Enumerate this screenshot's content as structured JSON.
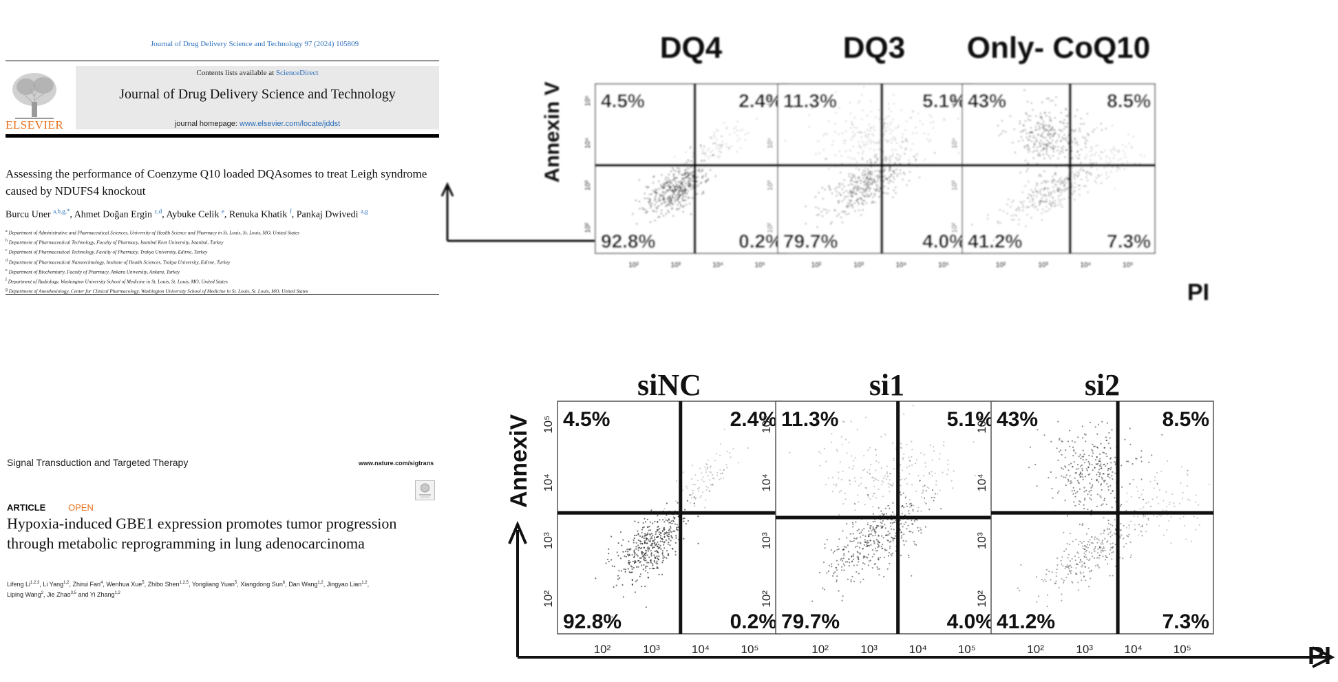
{
  "paper1": {
    "journal_ref": "Journal of Drug Delivery Science and Technology 97 (2024) 105809",
    "contents_prefix": "Contents lists available at ",
    "contents_link": "ScienceDirect",
    "publisher": "ELSEVIER",
    "banner_title": "Journal of Drug Delivery Science and Technology",
    "homepage_prefix": "journal homepage: ",
    "homepage_link": "www.elsevier.com/locate/jddst",
    "title": "Assessing the performance of Coenzyme Q10 loaded DQAsomes to treat Leigh syndrome caused by NDUFS4 knockout",
    "authors": [
      {
        "name": "Burcu Uner",
        "sup": "a,b,g,*"
      },
      {
        "name": "Ahmet Doğan Ergin",
        "sup": "c,d"
      },
      {
        "name": "Aybuke Celik",
        "sup": "e"
      },
      {
        "name": "Renuka Khatik",
        "sup": "f"
      },
      {
        "name": "Pankaj Dwivedi",
        "sup": "a,g"
      }
    ],
    "affiliations": [
      {
        "sup": "a",
        "text": "Department of Administrative and Pharmaceutical Sciences, University of Health Science and Pharmacy in St. Louis, St. Louis, MO, United States"
      },
      {
        "sup": "b",
        "text": "Department of Pharmaceutical Technology, Faculty of Pharmacy, Istanbul Kent University, Istanbul, Turkey"
      },
      {
        "sup": "c",
        "text": "Department of Pharmaceutical Technology, Faculty of Pharmacy, Trakya University, Edirne, Turkey"
      },
      {
        "sup": "d",
        "text": "Department of Pharmaceutical Nanotechnology, Institute of Health Sciences, Trakya University, Edirne, Turkey"
      },
      {
        "sup": "e",
        "text": "Department of Biochemistry, Faculty of Pharmacy, Ankara University, Ankara, Turkey"
      },
      {
        "sup": "f",
        "text": "Department of Radiology, Washington University School of Medicine in St. Louis, St. Louis, MO, United States"
      },
      {
        "sup": "g",
        "text": "Department of Anesthesiology, Center for Clinical Pharmacology, Washington University School of Medicine in St. Louis, St. Louis, MO, United States"
      }
    ]
  },
  "paper2": {
    "journal": "Signal Transduction and Targeted Therapy",
    "url": "www.nature.com/sigtrans",
    "article_type": "ARTICLE",
    "access": "OPEN",
    "title": "Hypoxia-induced GBE1 expression promotes tumor progression through metabolic reprogramming in lung adenocarcinoma",
    "authors": [
      {
        "name": "Lifeng Li",
        "sup": "1,2,3"
      },
      {
        "name": "Li Yang",
        "sup": "1,2"
      },
      {
        "name": "Zhirui Fan",
        "sup": "4"
      },
      {
        "name": "Wenhua Xue",
        "sup": "5"
      },
      {
        "name": "Zhibo Shen",
        "sup": "1,2,5"
      },
      {
        "name": "Yongliang Yuan",
        "sup": "5"
      },
      {
        "name": "Xiangdong Sun",
        "sup": "6"
      },
      {
        "name": "Dan Wang",
        "sup": "1,2"
      },
      {
        "name": "Jingyao Lian",
        "sup": "1,2"
      },
      {
        "name": "Liping Wang",
        "sup": "2"
      },
      {
        "name": "Jie Zhao",
        "sup": "3,5"
      },
      {
        "name": "Yi Zhang",
        "sup": "1,2"
      }
    ]
  },
  "chart_data": [
    {
      "type": "scatter",
      "xlabel": "PI",
      "ylabel": "Annexin V",
      "x_ticks": [
        "10²",
        "10³",
        "10⁴",
        "10⁵"
      ],
      "y_ticks": [
        "10²",
        "10³",
        "10⁴",
        "10⁵"
      ],
      "panels": [
        {
          "title": "DQ4",
          "quadrants": {
            "upper_left": "4.5%",
            "upper_right": "2.4%",
            "lower_left": "92.8%",
            "lower_right": "0.2%"
          }
        },
        {
          "title": "DQ3",
          "quadrants": {
            "upper_left": "11.3%",
            "upper_right": "5.1%",
            "lower_left": "79.7%",
            "lower_right": "4.0%"
          }
        },
        {
          "title": "Only- CoQ10",
          "quadrants": {
            "upper_left": "43%",
            "upper_right": "8.5%",
            "lower_left": "41.2%",
            "lower_right": "7.3%"
          }
        }
      ]
    },
    {
      "type": "scatter",
      "xlabel": "PI",
      "ylabel": "AnnexiV",
      "x_ticks": [
        "10²",
        "10³",
        "10⁴",
        "10⁵"
      ],
      "y_ticks": [
        "10²",
        "10³",
        "10⁴",
        "10⁵"
      ],
      "panels": [
        {
          "title": "siNC",
          "quadrants": {
            "upper_left": "4.5%",
            "upper_right": "2.4%",
            "lower_left": "92.8%",
            "lower_right": "0.2%"
          }
        },
        {
          "title": "si1",
          "quadrants": {
            "upper_left": "11.3%",
            "upper_right": "5.1%",
            "lower_left": "79.7%",
            "lower_right": "4.0%"
          }
        },
        {
          "title": "si2",
          "quadrants": {
            "upper_left": "43%",
            "upper_right": "8.5%",
            "lower_left": "41.2%",
            "lower_right": "7.3%"
          }
        }
      ]
    }
  ]
}
